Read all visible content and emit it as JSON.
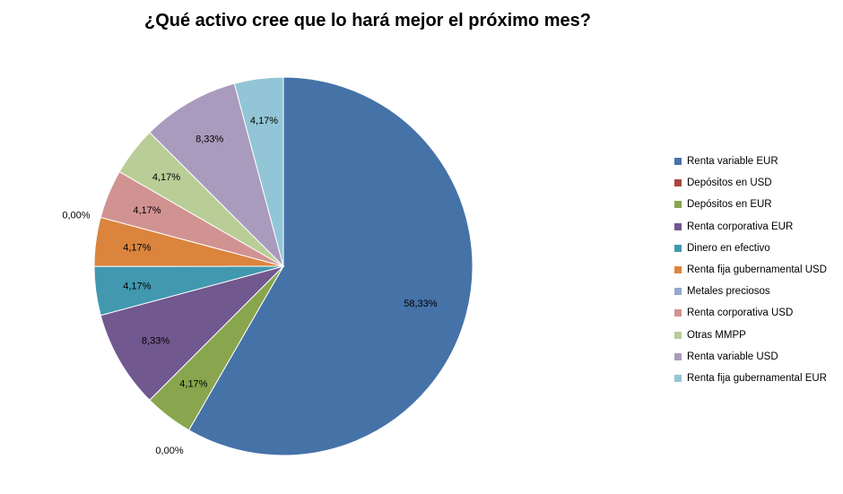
{
  "chart_data": {
    "type": "pie",
    "title": "¿Qué activo cree que lo hará mejor el próximo mes?",
    "legend_position": "right",
    "slices": [
      {
        "name": "Renta variable EUR",
        "value": 58.33,
        "label": "58,33%",
        "color": "#4572A7"
      },
      {
        "name": "Depósitos en USD",
        "value": 0,
        "label": "0,00%",
        "color": "#AA4643"
      },
      {
        "name": "Depósitos en EUR",
        "value": 4.17,
        "label": "4,17%",
        "color": "#89A54E"
      },
      {
        "name": "Renta corporativa EUR",
        "value": 8.33,
        "label": "8,33%",
        "color": "#71588F"
      },
      {
        "name": "Dinero en efectivo",
        "value": 4.17,
        "label": "4,17%",
        "color": "#4198AF"
      },
      {
        "name": "Renta fija gubernamental USD",
        "value": 4.17,
        "label": "4,17%",
        "color": "#DB843D"
      },
      {
        "name": "Metales preciosos",
        "value": 0,
        "label": "0,00%",
        "color": "#93A9CF"
      },
      {
        "name": "Renta corporativa USD",
        "value": 4.17,
        "label": "4,17%",
        "color": "#D19392"
      },
      {
        "name": "Otras MMPP",
        "value": 4.17,
        "label": "4,17%",
        "color": "#B9CD96"
      },
      {
        "name": "Renta variable USD",
        "value": 8.33,
        "label": "8,33%",
        "color": "#A99BBD"
      },
      {
        "name": "Renta fija gubernamental EUR",
        "value": 4.17,
        "label": "4,17%",
        "color": "#92C5D6"
      }
    ]
  }
}
